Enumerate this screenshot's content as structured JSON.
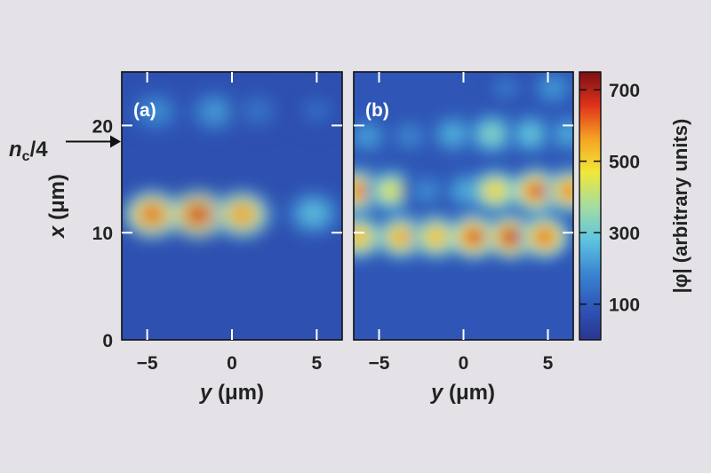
{
  "chart_data": {
    "type": "heatmap",
    "colormap": [
      "#2a3590",
      "#2f57b8",
      "#3b86d0",
      "#5ec5e0",
      "#a6dca0",
      "#f2e73a",
      "#f5a323",
      "#e0321c",
      "#7a1014"
    ],
    "colorbar": {
      "label": "|φ| (arbitrary units)",
      "range": [
        0,
        750
      ],
      "ticks": [
        100,
        300,
        500,
        700
      ],
      "tick_labels": [
        "100",
        "300",
        "500",
        "700"
      ]
    },
    "annotation": {
      "base": "n",
      "sub": "c",
      "rest": "/4",
      "x": 18.5
    },
    "panels": [
      {
        "label_open": "(",
        "label_letter": "a",
        "label_close": ")",
        "xlabel_var": "y",
        "xlabel_rest": " (μm)",
        "ylabel_var": "x",
        "ylabel_rest": " (μm)",
        "xlim": [
          -6.5,
          6.5
        ],
        "ylim": [
          0,
          25
        ],
        "xticks": [
          -5,
          0,
          5
        ],
        "xtick_labels": [
          "−5",
          "0",
          "5"
        ],
        "yticks": [
          0,
          10,
          20
        ],
        "ytick_labels": [
          "0",
          "10",
          "20"
        ],
        "background": 75,
        "spots": [
          {
            "y": -4.7,
            "x": 11.7,
            "amplitude": 680
          },
          {
            "y": -2.0,
            "x": 11.7,
            "amplitude": 730
          },
          {
            "y": 0.6,
            "x": 11.7,
            "amplitude": 610
          },
          {
            "y": 4.8,
            "x": 11.8,
            "amplitude": 290
          },
          {
            "y": -4.5,
            "x": 21.3,
            "amplitude": 210
          },
          {
            "y": -1.0,
            "x": 21.3,
            "amplitude": 230
          },
          {
            "y": 1.5,
            "x": 21.4,
            "amplitude": 160
          },
          {
            "y": 5.0,
            "x": 21.4,
            "amplitude": 140
          }
        ]
      },
      {
        "label_open": "(",
        "label_letter": "b",
        "label_close": ")",
        "xlabel_var": "y",
        "xlabel_rest": " (μm)",
        "xlim": [
          -6.5,
          6.5
        ],
        "ylim": [
          0,
          25
        ],
        "xticks": [
          -5,
          0,
          5
        ],
        "xtick_labels": [
          "−5",
          "0",
          "5"
        ],
        "background": 90,
        "spots": [
          {
            "y": -6.2,
            "x": 9.6,
            "amplitude": 560
          },
          {
            "y": -3.7,
            "x": 9.6,
            "amplitude": 580
          },
          {
            "y": -1.6,
            "x": 9.6,
            "amplitude": 560
          },
          {
            "y": 0.6,
            "x": 9.6,
            "amplitude": 690
          },
          {
            "y": 2.8,
            "x": 9.6,
            "amplitude": 720
          },
          {
            "y": 4.8,
            "x": 9.6,
            "amplitude": 650
          },
          {
            "y": -6.3,
            "x": 13.9,
            "amplitude": 620
          },
          {
            "y": -4.3,
            "x": 13.9,
            "amplitude": 470
          },
          {
            "y": -2.2,
            "x": 13.9,
            "amplitude": 200
          },
          {
            "y": 0.2,
            "x": 13.9,
            "amplitude": 260
          },
          {
            "y": 1.9,
            "x": 13.9,
            "amplitude": 520
          },
          {
            "y": 4.3,
            "x": 13.9,
            "amplitude": 680
          },
          {
            "y": 6.3,
            "x": 13.9,
            "amplitude": 620
          },
          {
            "y": -5.7,
            "x": 19.0,
            "amplitude": 230
          },
          {
            "y": -3.2,
            "x": 19.0,
            "amplitude": 190
          },
          {
            "y": -0.6,
            "x": 19.2,
            "amplitude": 260
          },
          {
            "y": 1.7,
            "x": 19.2,
            "amplitude": 350
          },
          {
            "y": 4.0,
            "x": 19.2,
            "amplitude": 300
          },
          {
            "y": 6.2,
            "x": 19.2,
            "amplitude": 250
          },
          {
            "y": 2.5,
            "x": 23.5,
            "amplitude": 160
          },
          {
            "y": 5.3,
            "x": 23.5,
            "amplitude": 220
          }
        ]
      }
    ]
  }
}
